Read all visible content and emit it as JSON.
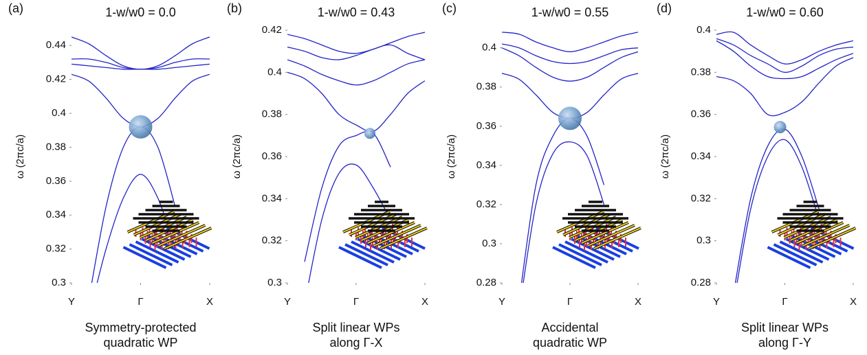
{
  "chart_data": [
    {
      "type": "line",
      "panel_label": "(a)",
      "title": "1-w/w0 = 0.0",
      "ylabel": "ω (2πc/a)",
      "caption": [
        "Symmetry-protected",
        "quadratic WP"
      ],
      "x": [
        0,
        0.25,
        0.5,
        0.75,
        1,
        1.25,
        1.5,
        1.75,
        2
      ],
      "xlim": [
        0,
        2
      ],
      "xticks": [
        {
          "value": 0,
          "label": "Y"
        },
        {
          "value": 1,
          "label": "Γ"
        },
        {
          "value": 2,
          "label": "X"
        }
      ],
      "ylim": [
        0.3,
        0.449
      ],
      "yticks": [
        0.3,
        0.32,
        0.34,
        0.36,
        0.38,
        0.4,
        0.42,
        0.44
      ],
      "series": [
        {
          "color": "#2323c8",
          "values": [
            0.445,
            0.441,
            0.434,
            0.428,
            0.426,
            0.428,
            0.434,
            0.441,
            0.445
          ]
        },
        {
          "color": "#2323c8",
          "values": [
            0.432,
            0.432,
            0.43,
            0.427,
            0.426,
            0.427,
            0.43,
            0.432,
            0.432
          ]
        },
        {
          "color": "#2323c8",
          "values": [
            0.429,
            0.428,
            0.427,
            0.426,
            0.426,
            0.426,
            0.427,
            0.428,
            0.429
          ]
        },
        {
          "color": "#2323c8",
          "values": [
            0.423,
            0.419,
            0.409,
            0.397,
            0.392,
            0.397,
            0.409,
            0.419,
            0.423
          ]
        },
        {
          "color": "#2323c8",
          "values": [
            null,
            0.29,
            0.345,
            0.38,
            0.392,
            0.38,
            0.345,
            null,
            null
          ]
        },
        {
          "color": "#2323c8",
          "values": [
            null,
            0.28,
            0.32,
            0.35,
            0.364,
            0.35,
            0.32,
            null,
            null
          ]
        }
      ],
      "weyl_point": {
        "x": 1,
        "y": 0.392
      }
    },
    {
      "type": "line",
      "panel_label": "(b)",
      "title": "1-w/w0 = 0.43",
      "ylabel": "ω (2πc/a)",
      "caption": [
        "Split linear WPs",
        "along Γ-X"
      ],
      "x": [
        0,
        0.25,
        0.5,
        0.75,
        1,
        1.25,
        1.5,
        1.75,
        2
      ],
      "xlim": [
        0,
        2
      ],
      "xticks": [
        {
          "value": 0,
          "label": "Y"
        },
        {
          "value": 1,
          "label": "Γ"
        },
        {
          "value": 2,
          "label": "X"
        }
      ],
      "ylim": [
        0.3,
        0.42
      ],
      "yticks": [
        0.3,
        0.32,
        0.34,
        0.36,
        0.38,
        0.4,
        0.42
      ],
      "series": [
        {
          "color": "#2323c8",
          "values": [
            0.418,
            0.416,
            0.413,
            0.41,
            0.409,
            0.411,
            0.414,
            0.417,
            0.419
          ]
        },
        {
          "color": "#2323c8",
          "values": [
            0.412,
            0.41,
            0.407,
            0.406,
            0.408,
            0.411,
            0.413,
            0.409,
            0.406
          ]
        },
        {
          "color": "#2323c8",
          "values": [
            0.406,
            0.403,
            0.399,
            0.396,
            0.394,
            0.396,
            0.4,
            0.404,
            0.406
          ]
        },
        {
          "color": "#2323c8",
          "values": [
            0.4,
            0.397,
            0.39,
            0.38,
            0.375,
            0.372,
            0.38,
            0.39,
            0.396
          ]
        },
        {
          "color": "#2323c8",
          "values": [
            null,
            0.31,
            0.345,
            0.365,
            0.37,
            0.371,
            0.355,
            null,
            null
          ]
        },
        {
          "color": "#2323c8",
          "values": [
            null,
            0.29,
            0.33,
            0.352,
            0.356,
            0.345,
            0.33,
            null,
            null
          ]
        }
      ],
      "weyl_point": {
        "x": 1.2,
        "y": 0.371
      }
    },
    {
      "type": "line",
      "panel_label": "(c)",
      "title": "1-w/w0 = 0.55",
      "ylabel": "ω (2πc/a)",
      "caption": [
        "Accidental",
        "quadratic WP"
      ],
      "x": [
        0,
        0.25,
        0.5,
        0.75,
        1,
        1.25,
        1.5,
        1.75,
        2
      ],
      "xlim": [
        0,
        2
      ],
      "xticks": [
        {
          "value": 0,
          "label": "Y"
        },
        {
          "value": 1,
          "label": "Γ"
        },
        {
          "value": 2,
          "label": "X"
        }
      ],
      "ylim": [
        0.28,
        0.409
      ],
      "yticks": [
        0.28,
        0.3,
        0.32,
        0.34,
        0.36,
        0.38,
        0.4
      ],
      "series": [
        {
          "color": "#2323c8",
          "values": [
            0.408,
            0.407,
            0.403,
            0.4,
            0.398,
            0.4,
            0.403,
            0.406,
            0.408
          ]
        },
        {
          "color": "#2323c8",
          "values": [
            0.402,
            0.4,
            0.396,
            0.393,
            0.392,
            0.393,
            0.396,
            0.399,
            0.4
          ]
        },
        {
          "color": "#2323c8",
          "values": [
            0.4,
            0.396,
            0.39,
            0.385,
            0.383,
            0.385,
            0.39,
            0.395,
            0.398
          ]
        },
        {
          "color": "#2323c8",
          "values": [
            0.387,
            0.384,
            0.376,
            0.367,
            0.364,
            0.367,
            0.376,
            0.384,
            0.387
          ]
        },
        {
          "color": "#2323c8",
          "values": [
            null,
            0.27,
            0.33,
            0.355,
            0.364,
            0.355,
            0.33,
            null,
            null
          ]
        },
        {
          "color": "#2323c8",
          "values": [
            null,
            0.265,
            0.32,
            0.346,
            0.352,
            0.345,
            0.32,
            null,
            null
          ]
        }
      ],
      "weyl_point": {
        "x": 1,
        "y": 0.364
      }
    },
    {
      "type": "line",
      "panel_label": "(d)",
      "title": "1-w/w0 = 0.60",
      "ylabel": "ω (2πc/a)",
      "caption": [
        "Split linear WPs",
        "along Γ-Y"
      ],
      "x": [
        0,
        0.25,
        0.5,
        0.75,
        1,
        1.25,
        1.5,
        1.75,
        2
      ],
      "xlim": [
        0,
        2
      ],
      "xticks": [
        {
          "value": 0,
          "label": "Y"
        },
        {
          "value": 1,
          "label": "Γ"
        },
        {
          "value": 2,
          "label": "X"
        }
      ],
      "ylim": [
        0.28,
        0.4
      ],
      "yticks": [
        0.28,
        0.3,
        0.32,
        0.34,
        0.36,
        0.38,
        0.4
      ],
      "series": [
        {
          "color": "#2323c8",
          "values": [
            0.398,
            0.399,
            0.393,
            0.388,
            0.384,
            0.386,
            0.39,
            0.393,
            0.395
          ]
        },
        {
          "color": "#2323c8",
          "values": [
            0.396,
            0.393,
            0.388,
            0.384,
            0.38,
            0.383,
            0.388,
            0.391,
            0.392
          ]
        },
        {
          "color": "#2323c8",
          "values": [
            0.395,
            0.39,
            0.383,
            0.378,
            0.377,
            0.378,
            0.382,
            0.386,
            0.389
          ]
        },
        {
          "color": "#2323c8",
          "values": [
            0.378,
            0.376,
            0.37,
            0.36,
            0.361,
            0.366,
            0.375,
            0.383,
            0.387
          ]
        },
        {
          "color": "#2323c8",
          "values": [
            null,
            0.275,
            0.32,
            0.345,
            0.353,
            0.34,
            0.315,
            null,
            null
          ]
        },
        {
          "color": "#2323c8",
          "values": [
            null,
            0.27,
            0.315,
            0.34,
            0.348,
            0.335,
            0.31,
            null,
            null
          ]
        }
      ],
      "weyl_point": {
        "x": 0.93,
        "y": 0.354
      }
    }
  ]
}
